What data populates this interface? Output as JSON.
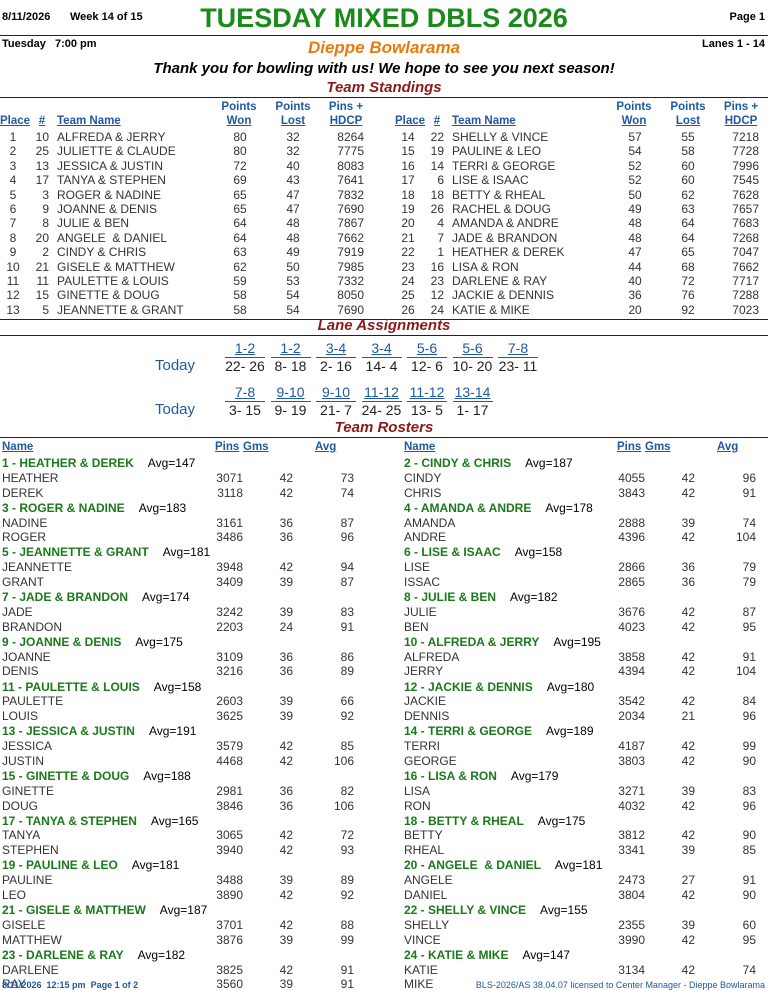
{
  "header": {
    "date": "8/11/2026",
    "week": "Week 14 of 15",
    "title": "TUESDAY MIXED DBLS 2026",
    "page": "Page 1",
    "day": "Tuesday   7:00 pm",
    "venue": "Dieppe Bowlarama",
    "lanes": "Lanes 1 - 14",
    "message": "Thank you for bowling with us! We hope to see you next season!"
  },
  "standings": {
    "title": "Team Standings",
    "columns": {
      "place": "Place",
      "num": "#",
      "team": "Team Name",
      "won": [
        "Points",
        "Won"
      ],
      "lost": [
        "Points",
        "Lost"
      ],
      "pins": [
        "Pins +",
        "HDCP"
      ]
    },
    "rows": [
      [
        "1",
        "10",
        "ALFREDA & JERRY",
        "80",
        "32",
        "8264"
      ],
      [
        "2",
        "25",
        "JULIETTE & CLAUDE",
        "80",
        "32",
        "7775"
      ],
      [
        "3",
        "13",
        "JESSICA & JUSTIN",
        "72",
        "40",
        "8083"
      ],
      [
        "4",
        "17",
        "TANYA & STEPHEN",
        "69",
        "43",
        "7641"
      ],
      [
        "5",
        "3",
        "ROGER & NADINE",
        "65",
        "47",
        "7832"
      ],
      [
        "6",
        "9",
        "JOANNE & DENIS",
        "65",
        "47",
        "7690"
      ],
      [
        "7",
        "8",
        "JULIE & BEN",
        "64",
        "48",
        "7867"
      ],
      [
        "8",
        "20",
        "ANGELE  & DANIEL",
        "64",
        "48",
        "7662"
      ],
      [
        "9",
        "2",
        "CINDY & CHRIS",
        "63",
        "49",
        "7919"
      ],
      [
        "10",
        "21",
        "GISELE & MATTHEW",
        "62",
        "50",
        "7985"
      ],
      [
        "11",
        "11",
        "PAULETTE & LOUIS",
        "59",
        "53",
        "7332"
      ],
      [
        "12",
        "15",
        "GINETTE & DOUG",
        "58",
        "54",
        "8050"
      ],
      [
        "13",
        "5",
        "JEANNETTE & GRANT",
        "58",
        "54",
        "7690"
      ],
      [
        "14",
        "22",
        "SHELLY & VINCE",
        "57",
        "55",
        "7218"
      ],
      [
        "15",
        "19",
        "PAULINE & LEO",
        "54",
        "58",
        "7728"
      ],
      [
        "16",
        "14",
        "TERRI & GEORGE",
        "52",
        "60",
        "7996"
      ],
      [
        "17",
        "6",
        "LISE & ISAAC",
        "52",
        "60",
        "7545"
      ],
      [
        "18",
        "18",
        "BETTY & RHEAL",
        "50",
        "62",
        "7628"
      ],
      [
        "19",
        "26",
        "RACHEL & DOUG",
        "49",
        "63",
        "7657"
      ],
      [
        "20",
        "4",
        "AMANDA & ANDRE",
        "48",
        "64",
        "7683"
      ],
      [
        "21",
        "7",
        "JADE & BRANDON",
        "48",
        "64",
        "7268"
      ],
      [
        "22",
        "1",
        "HEATHER & DEREK",
        "47",
        "65",
        "7047"
      ],
      [
        "23",
        "16",
        "LISA & RON",
        "44",
        "68",
        "7662"
      ],
      [
        "24",
        "23",
        "DARLENE & RAY",
        "40",
        "72",
        "7717"
      ],
      [
        "25",
        "12",
        "JACKIE & DENNIS",
        "36",
        "76",
        "7288"
      ],
      [
        "26",
        "24",
        "KATIE & MIKE",
        "20",
        "92",
        "7023"
      ]
    ]
  },
  "lanes": {
    "title": "Lane Assignments",
    "rows": [
      {
        "label": "Today",
        "lanes": [
          "1-2",
          "1-2",
          "3-4",
          "3-4",
          "5-6",
          "5-6",
          "7-8"
        ],
        "matches": [
          "22- 26",
          "8- 18",
          "2- 16",
          "14- 4",
          "12- 6",
          "10- 20",
          "23- 11"
        ]
      },
      {
        "label": "Today",
        "lanes": [
          "7-8",
          "9-10",
          "9-10",
          "11-12",
          "11-12",
          "13-14"
        ],
        "matches": [
          "3- 15",
          "9- 19",
          "21- 7",
          "24- 25",
          "13- 5",
          "1- 17"
        ]
      }
    ]
  },
  "rosters": {
    "title": "Team Rosters",
    "columns": {
      "name": "Name",
      "pins": "Pins",
      "gms": "Gms",
      "avg": "Avg"
    },
    "teams": [
      {
        "title": "1 - HEATHER & DEREK",
        "avg": "Avg=147",
        "bowlers": [
          [
            "HEATHER",
            "3071",
            "42",
            "73"
          ],
          [
            "DEREK",
            "3118",
            "42",
            "74"
          ]
        ]
      },
      {
        "title": "2 - CINDY & CHRIS",
        "avg": "Avg=187",
        "bowlers": [
          [
            "CINDY",
            "4055",
            "42",
            "96"
          ],
          [
            "CHRIS",
            "3843",
            "42",
            "91"
          ]
        ]
      },
      {
        "title": "3 - ROGER & NADINE",
        "avg": "Avg=183",
        "bowlers": [
          [
            "NADINE",
            "3161",
            "36",
            "87"
          ],
          [
            "ROGER",
            "3486",
            "36",
            "96"
          ]
        ]
      },
      {
        "title": "4 - AMANDA & ANDRE",
        "avg": "Avg=178",
        "bowlers": [
          [
            "AMANDA",
            "2888",
            "39",
            "74"
          ],
          [
            "ANDRE",
            "4396",
            "42",
            "104"
          ]
        ]
      },
      {
        "title": "5 - JEANNETTE & GRANT",
        "avg": "Avg=181",
        "bowlers": [
          [
            "JEANNETTE",
            "3948",
            "42",
            "94"
          ],
          [
            "GRANT",
            "3409",
            "39",
            "87"
          ]
        ]
      },
      {
        "title": "6 - LISE & ISAAC",
        "avg": "Avg=158",
        "bowlers": [
          [
            "LISE",
            "2866",
            "36",
            "79"
          ],
          [
            "ISSAC",
            "2865",
            "36",
            "79"
          ]
        ]
      },
      {
        "title": "7 - JADE & BRANDON",
        "avg": "Avg=174",
        "bowlers": [
          [
            "JADE",
            "3242",
            "39",
            "83"
          ],
          [
            "BRANDON",
            "2203",
            "24",
            "91"
          ]
        ]
      },
      {
        "title": "8 - JULIE & BEN",
        "avg": "Avg=182",
        "bowlers": [
          [
            "JULIE",
            "3676",
            "42",
            "87"
          ],
          [
            "BEN",
            "4023",
            "42",
            "95"
          ]
        ]
      },
      {
        "title": "9 - JOANNE & DENIS",
        "avg": "Avg=175",
        "bowlers": [
          [
            "JOANNE",
            "3109",
            "36",
            "86"
          ],
          [
            "DENIS",
            "3216",
            "36",
            "89"
          ]
        ]
      },
      {
        "title": "10 - ALFREDA & JERRY",
        "avg": "Avg=195",
        "bowlers": [
          [
            "ALFREDA",
            "3858",
            "42",
            "91"
          ],
          [
            "JERRY",
            "4394",
            "42",
            "104"
          ]
        ]
      },
      {
        "title": "11 - PAULETTE & LOUIS",
        "avg": "Avg=158",
        "bowlers": [
          [
            "PAULETTE",
            "2603",
            "39",
            "66"
          ],
          [
            "LOUIS",
            "3625",
            "39",
            "92"
          ]
        ]
      },
      {
        "title": "12 - JACKIE & DENNIS",
        "avg": "Avg=180",
        "bowlers": [
          [
            "JACKIE",
            "3542",
            "42",
            "84"
          ],
          [
            "DENNIS",
            "2034",
            "21",
            "96"
          ]
        ]
      },
      {
        "title": "13 - JESSICA & JUSTIN",
        "avg": "Avg=191",
        "bowlers": [
          [
            "JESSICA",
            "3579",
            "42",
            "85"
          ],
          [
            "JUSTIN",
            "4468",
            "42",
            "106"
          ]
        ]
      },
      {
        "title": "14 - TERRI & GEORGE",
        "avg": "Avg=189",
        "bowlers": [
          [
            "TERRI",
            "4187",
            "42",
            "99"
          ],
          [
            "GEORGE",
            "3803",
            "42",
            "90"
          ]
        ]
      },
      {
        "title": "15 - GINETTE & DOUG",
        "avg": "Avg=188",
        "bowlers": [
          [
            "GINETTE",
            "2981",
            "36",
            "82"
          ],
          [
            "DOUG",
            "3846",
            "36",
            "106"
          ]
        ]
      },
      {
        "title": "16 - LISA & RON",
        "avg": "Avg=179",
        "bowlers": [
          [
            "LISA",
            "3271",
            "39",
            "83"
          ],
          [
            "RON",
            "4032",
            "42",
            "96"
          ]
        ]
      },
      {
        "title": "17 - TANYA & STEPHEN",
        "avg": "Avg=165",
        "bowlers": [
          [
            "TANYA",
            "3065",
            "42",
            "72"
          ],
          [
            "STEPHEN",
            "3940",
            "42",
            "93"
          ]
        ]
      },
      {
        "title": "18 - BETTY & RHEAL",
        "avg": "Avg=175",
        "bowlers": [
          [
            "BETTY",
            "3812",
            "42",
            "90"
          ],
          [
            "RHEAL",
            "3341",
            "39",
            "85"
          ]
        ]
      },
      {
        "title": "19 - PAULINE & LEO",
        "avg": "Avg=181",
        "bowlers": [
          [
            "PAULINE",
            "3488",
            "39",
            "89"
          ],
          [
            "LEO",
            "3890",
            "42",
            "92"
          ]
        ]
      },
      {
        "title": "20 - ANGELE  & DANIEL",
        "avg": "Avg=181",
        "bowlers": [
          [
            "ANGELE",
            "2473",
            "27",
            "91"
          ],
          [
            "DANIEL",
            "3804",
            "42",
            "90"
          ]
        ]
      },
      {
        "title": "21 - GISELE & MATTHEW",
        "avg": "Avg=187",
        "bowlers": [
          [
            "GISELE",
            "3701",
            "42",
            "88"
          ],
          [
            "MATTHEW",
            "3876",
            "39",
            "99"
          ]
        ]
      },
      {
        "title": "22 - SHELLY & VINCE",
        "avg": "Avg=155",
        "bowlers": [
          [
            "SHELLY",
            "2355",
            "39",
            "60"
          ],
          [
            "VINCE",
            "3990",
            "42",
            "95"
          ]
        ]
      },
      {
        "title": "23 - DARLENE & RAY",
        "avg": "Avg=182",
        "bowlers": [
          [
            "DARLENE",
            "3825",
            "42",
            "91"
          ],
          [
            "RAY",
            "3560",
            "39",
            "91"
          ]
        ]
      },
      {
        "title": "24 - KATIE & MIKE",
        "avg": "Avg=147",
        "bowlers": [
          [
            "KATIE",
            "3134",
            "42",
            "74"
          ],
          [
            "MIKE"
          ]
        ]
      }
    ]
  },
  "footer": {
    "left": "8/11/2026  12:15 pm  Page 1 of 2",
    "right": "BLS-2026/AS 38.04.07 licensed to Center Manager - Dieppe Bowlarama"
  }
}
